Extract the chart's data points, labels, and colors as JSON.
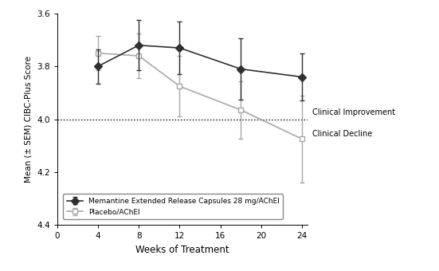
{
  "weeks": [
    4,
    8,
    12,
    18,
    24
  ],
  "memantine_y": [
    3.8,
    3.72,
    3.73,
    3.81,
    3.84
  ],
  "memantine_err": [
    0.065,
    0.095,
    0.1,
    0.115,
    0.09
  ],
  "placebo_y": [
    3.75,
    3.76,
    3.875,
    3.965,
    4.075
  ],
  "placebo_err": [
    0.065,
    0.085,
    0.115,
    0.11,
    0.165
  ],
  "memantine_label": "Memantine Extended Release Capsules 28 mg/AChEI",
  "placebo_label": "Placebo/AChEI",
  "ylabel": "Mean (± SEM) CIBC-Plus Score",
  "xlabel": "Weeks of Treatment",
  "ylim": [
    4.4,
    3.6
  ],
  "xlim": [
    0,
    24.5
  ],
  "xticks": [
    0,
    4,
    8,
    12,
    16,
    20,
    24
  ],
  "yticks": [
    3.6,
    3.8,
    4.0,
    4.2,
    4.4
  ],
  "dotted_line_y": 4.0,
  "clinical_improvement_label": "Clinical Improvement",
  "clinical_decline_label": "Clinical Decline",
  "memantine_color": "#303030",
  "placebo_color": "#a8a8a8",
  "background_color": "#ffffff",
  "figsize": [
    5.51,
    3.4
  ],
  "dpi": 100
}
